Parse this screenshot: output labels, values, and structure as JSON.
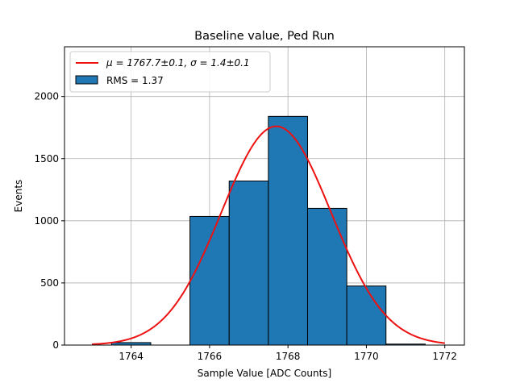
{
  "chart_data": {
    "type": "bar",
    "title": "Baseline value, Ped Run",
    "xlabel": "Sample Value [ADC Counts]",
    "ylabel": "Events",
    "xlim": [
      1762.3,
      1772.5
    ],
    "ylim": [
      0,
      2400
    ],
    "x_ticks": [
      1764,
      1766,
      1768,
      1770,
      1772
    ],
    "y_ticks": [
      0,
      500,
      1000,
      1500,
      2000
    ],
    "grid": true,
    "legend_position": "top-left",
    "histogram": {
      "label": "RMS = 1.37",
      "color": "#1f77b4",
      "edge_color": "#000000",
      "bins": [
        {
          "x0": 1762.5,
          "x1": 1763.5,
          "count": 0
        },
        {
          "x0": 1763.5,
          "x1": 1764.5,
          "count": 20
        },
        {
          "x0": 1764.5,
          "x1": 1765.5,
          "count": 0
        },
        {
          "x0": 1765.5,
          "x1": 1766.5,
          "count": 1035
        },
        {
          "x0": 1766.5,
          "x1": 1767.5,
          "count": 1320
        },
        {
          "x0": 1767.5,
          "x1": 1768.5,
          "count": 1840
        },
        {
          "x0": 1768.5,
          "x1": 1769.5,
          "count": 1100
        },
        {
          "x0": 1769.5,
          "x1": 1770.5,
          "count": 475
        },
        {
          "x0": 1770.5,
          "x1": 1771.5,
          "count": 8
        }
      ]
    },
    "fit": {
      "label_mu": "μ = 1767.7±0.1, ",
      "label_sigma": "σ = 1.4±0.1",
      "color": "#ee1111",
      "mu": 1767.7,
      "sigma": 1.4,
      "amplitude": 1760,
      "x_range": [
        1763,
        1772
      ]
    }
  }
}
